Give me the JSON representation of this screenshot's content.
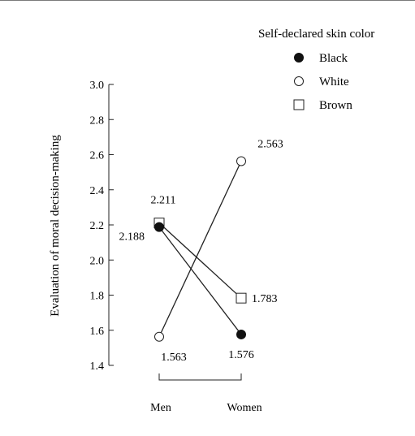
{
  "chart_data": {
    "type": "line",
    "title": "",
    "ylabel": "Evaluation of moral decision-making",
    "xlabel": "",
    "categories": [
      "Men",
      "Women"
    ],
    "ylim": [
      1.4,
      3.0
    ],
    "yticks": [
      "1.4",
      "1.6",
      "1.8",
      "2.0",
      "2.2",
      "2.4",
      "2.6",
      "2.8",
      "3.0"
    ],
    "grid": false,
    "legend": {
      "title": "Self-declared skin color",
      "position": "top-right"
    },
    "series": [
      {
        "name": "Black",
        "marker": "filled-circle",
        "values": [
          2.188,
          1.576
        ],
        "labels": [
          "2.188",
          "1.576"
        ]
      },
      {
        "name": "White",
        "marker": "open-circle",
        "values": [
          1.563,
          2.563
        ],
        "labels": [
          "1.563",
          "2.563"
        ]
      },
      {
        "name": "Brown",
        "marker": "open-square",
        "values": [
          2.211,
          1.783
        ],
        "labels": [
          "2.211",
          "1.783"
        ]
      }
    ]
  }
}
